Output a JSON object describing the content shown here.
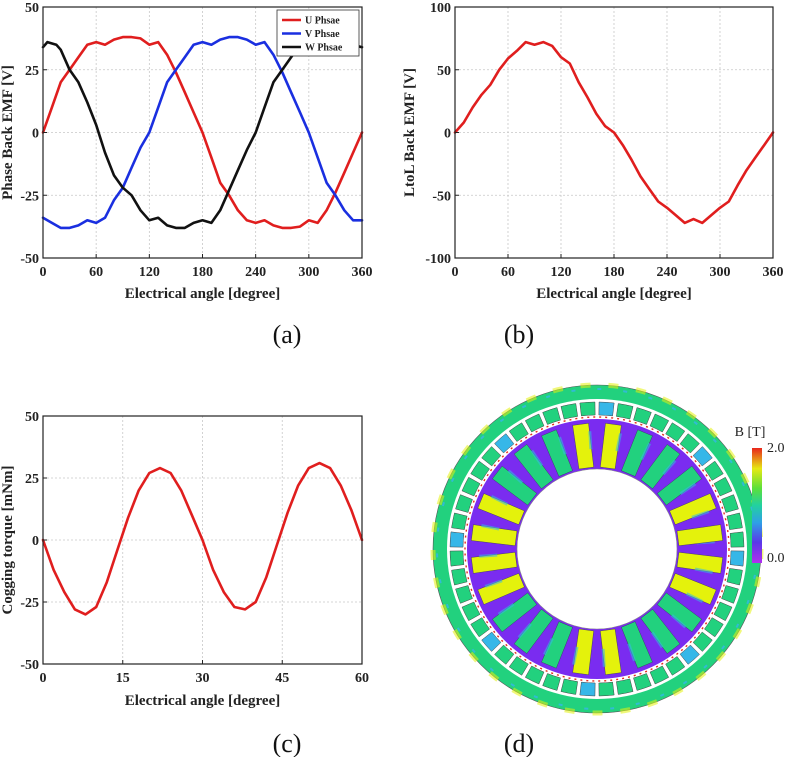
{
  "chart_data": [
    {
      "id": "a",
      "type": "line",
      "caption": "(a)",
      "xlabel": "Electrical angle [degree]",
      "ylabel": "Phase Back EMF [V]",
      "xlim": [
        0,
        360
      ],
      "ylim": [
        -50,
        50
      ],
      "xticks": [
        0,
        60,
        120,
        180,
        240,
        300,
        360
      ],
      "yticks": [
        -50,
        -25,
        0,
        25,
        50
      ],
      "grid": true,
      "legend_position": "top-right",
      "series": [
        {
          "name": "U Phsae",
          "color": "#e01e1e",
          "points": [
            [
              0,
              0
            ],
            [
              10,
              10
            ],
            [
              20,
              20
            ],
            [
              30,
              25
            ],
            [
              40,
              30
            ],
            [
              50,
              35
            ],
            [
              60,
              36
            ],
            [
              70,
              35
            ],
            [
              80,
              37
            ],
            [
              90,
              38
            ],
            [
              100,
              38
            ],
            [
              110,
              37.5
            ],
            [
              120,
              35
            ],
            [
              130,
              36
            ],
            [
              140,
              31
            ],
            [
              150,
              24
            ],
            [
              160,
              16
            ],
            [
              170,
              8
            ],
            [
              180,
              0
            ],
            [
              190,
              -10
            ],
            [
              200,
              -20
            ],
            [
              210,
              -25
            ],
            [
              220,
              -31
            ],
            [
              230,
              -35
            ],
            [
              240,
              -36
            ],
            [
              250,
              -35
            ],
            [
              260,
              -37
            ],
            [
              270,
              -38
            ],
            [
              280,
              -38
            ],
            [
              290,
              -37.5
            ],
            [
              300,
              -35
            ],
            [
              310,
              -36
            ],
            [
              320,
              -31
            ],
            [
              330,
              -24
            ],
            [
              340,
              -16
            ],
            [
              350,
              -8
            ],
            [
              360,
              0
            ]
          ]
        },
        {
          "name": "V Phsae",
          "color": "#1a2fe0",
          "points": [
            [
              0,
              -34
            ],
            [
              10,
              -36
            ],
            [
              20,
              -38
            ],
            [
              30,
              -38
            ],
            [
              40,
              -37
            ],
            [
              50,
              -35
            ],
            [
              60,
              -36
            ],
            [
              70,
              -34
            ],
            [
              80,
              -27
            ],
            [
              90,
              -22
            ],
            [
              100,
              -14
            ],
            [
              110,
              -6
            ],
            [
              120,
              0
            ],
            [
              130,
              10
            ],
            [
              140,
              20
            ],
            [
              150,
              25
            ],
            [
              160,
              30
            ],
            [
              170,
              35
            ],
            [
              180,
              36
            ],
            [
              190,
              35
            ],
            [
              200,
              37
            ],
            [
              210,
              38
            ],
            [
              220,
              38
            ],
            [
              230,
              37
            ],
            [
              240,
              35
            ],
            [
              250,
              36
            ],
            [
              260,
              31
            ],
            [
              270,
              24
            ],
            [
              280,
              16
            ],
            [
              290,
              8
            ],
            [
              300,
              0
            ],
            [
              310,
              -10
            ],
            [
              320,
              -20
            ],
            [
              330,
              -25
            ],
            [
              340,
              -31
            ],
            [
              350,
              -35
            ],
            [
              360,
              -35
            ]
          ]
        },
        {
          "name": "W Phsae",
          "color": "#111111",
          "points": [
            [
              0,
              34
            ],
            [
              5,
              36
            ],
            [
              15,
              35
            ],
            [
              20,
              33
            ],
            [
              30,
              25
            ],
            [
              40,
              20
            ],
            [
              50,
              12
            ],
            [
              60,
              3
            ],
            [
              70,
              -8
            ],
            [
              80,
              -17
            ],
            [
              90,
              -22
            ],
            [
              100,
              -25
            ],
            [
              110,
              -31
            ],
            [
              120,
              -35
            ],
            [
              130,
              -34
            ],
            [
              140,
              -37
            ],
            [
              150,
              -38
            ],
            [
              160,
              -38
            ],
            [
              170,
              -36
            ],
            [
              180,
              -35
            ],
            [
              190,
              -36
            ],
            [
              200,
              -31
            ],
            [
              210,
              -23
            ],
            [
              220,
              -15
            ],
            [
              230,
              -7
            ],
            [
              240,
              0
            ],
            [
              250,
              10
            ],
            [
              260,
              20
            ],
            [
              270,
              25
            ],
            [
              280,
              30
            ],
            [
              290,
              35
            ],
            [
              300,
              36
            ],
            [
              310,
              35
            ],
            [
              320,
              37
            ],
            [
              330,
              38
            ],
            [
              340,
              37.5
            ],
            [
              350,
              35
            ],
            [
              360,
              34
            ]
          ]
        }
      ]
    },
    {
      "id": "b",
      "type": "line",
      "caption": "(b)",
      "xlabel": "Electrical angle [degree]",
      "ylabel": "LtoL Back EMF [V]",
      "xlim": [
        0,
        360
      ],
      "ylim": [
        -100,
        100
      ],
      "xticks": [
        0,
        60,
        120,
        180,
        240,
        300,
        360
      ],
      "yticks": [
        -100,
        -50,
        0,
        50,
        100
      ],
      "grid": true,
      "series": [
        {
          "name": "LtoL",
          "color": "#e01e1e",
          "points": [
            [
              0,
              0
            ],
            [
              10,
              8
            ],
            [
              20,
              20
            ],
            [
              30,
              30
            ],
            [
              40,
              38
            ],
            [
              50,
              50
            ],
            [
              60,
              59
            ],
            [
              70,
              65
            ],
            [
              80,
              72
            ],
            [
              90,
              70
            ],
            [
              100,
              72
            ],
            [
              110,
              69
            ],
            [
              120,
              60
            ],
            [
              130,
              55
            ],
            [
              140,
              40
            ],
            [
              150,
              28
            ],
            [
              160,
              15
            ],
            [
              170,
              5
            ],
            [
              180,
              0
            ],
            [
              190,
              -10
            ],
            [
              200,
              -22
            ],
            [
              210,
              -35
            ],
            [
              220,
              -45
            ],
            [
              230,
              -55
            ],
            [
              240,
              -60
            ],
            [
              250,
              -66
            ],
            [
              260,
              -72
            ],
            [
              270,
              -69
            ],
            [
              280,
              -72
            ],
            [
              290,
              -66
            ],
            [
              300,
              -60
            ],
            [
              310,
              -55
            ],
            [
              320,
              -42
            ],
            [
              330,
              -30
            ],
            [
              340,
              -20
            ],
            [
              350,
              -10
            ],
            [
              360,
              0
            ]
          ]
        }
      ]
    },
    {
      "id": "c",
      "type": "line",
      "caption": "(c)",
      "xlabel": "Electrical angle [degree]",
      "ylabel": "Cogging torque [mNm]",
      "xlim": [
        0,
        60
      ],
      "ylim": [
        -50,
        50
      ],
      "xticks": [
        0,
        15,
        30,
        45,
        60
      ],
      "yticks": [
        -50,
        -25,
        0,
        25,
        50
      ],
      "grid": true,
      "series": [
        {
          "name": "Cogging",
          "color": "#e01e1e",
          "points": [
            [
              0,
              0
            ],
            [
              2,
              -12
            ],
            [
              4,
              -21
            ],
            [
              6,
              -28
            ],
            [
              8,
              -30
            ],
            [
              10,
              -27
            ],
            [
              12,
              -17
            ],
            [
              14,
              -4
            ],
            [
              16,
              9
            ],
            [
              18,
              20
            ],
            [
              20,
              27
            ],
            [
              22,
              29
            ],
            [
              24,
              27
            ],
            [
              26,
              20
            ],
            [
              28,
              10
            ],
            [
              30,
              0
            ],
            [
              32,
              -12
            ],
            [
              34,
              -21
            ],
            [
              36,
              -27
            ],
            [
              38,
              -28
            ],
            [
              40,
              -25
            ],
            [
              42,
              -15
            ],
            [
              44,
              -2
            ],
            [
              46,
              11
            ],
            [
              48,
              22
            ],
            [
              50,
              29
            ],
            [
              52,
              31
            ],
            [
              54,
              29
            ],
            [
              56,
              22
            ],
            [
              58,
              12
            ],
            [
              60,
              0
            ]
          ]
        }
      ]
    }
  ],
  "panel_d": {
    "caption": "(d)",
    "colorbar_title": "B [T]",
    "colorbar_max": "2.0",
    "colorbar_min": "0.0",
    "stator_teeth_count": 24,
    "colors": {
      "low": "#7a2cf0",
      "mid": "#22d17e",
      "high": "#e4f20c",
      "peak": "#e62b1e",
      "cyan": "#36b7e8",
      "slot_gap": "#ffffff"
    }
  }
}
